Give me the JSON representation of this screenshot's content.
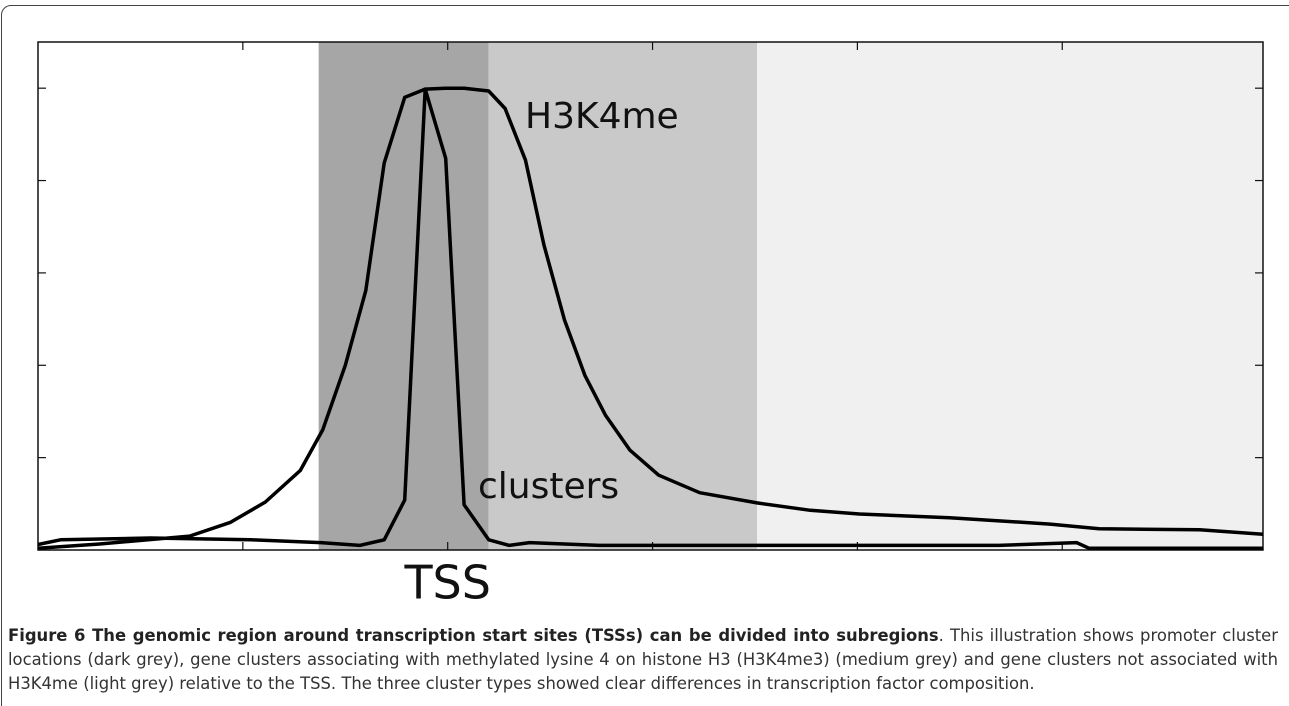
{
  "chart_data": {
    "type": "line",
    "xlim": [
      -2,
      3.98
    ],
    "ylim": [
      0,
      5.5
    ],
    "xticks": [
      -1,
      {
        "value": 0,
        "label": "TSS"
      },
      1,
      2,
      3
    ],
    "yticks": [
      1,
      2,
      3,
      4,
      5
    ],
    "regions": [
      {
        "start": -0.63,
        "end": 0.2,
        "color": "#a6a6a6"
      },
      {
        "start": 0.2,
        "end": 1.51,
        "color": "#c9c9c9"
      },
      {
        "start": 1.51,
        "end": 3.98,
        "color": "#f0f0f0"
      }
    ],
    "annotations": [
      "H3K4me",
      "clusters"
    ],
    "series": [
      {
        "color": "#000000",
        "x": [
          -2.0,
          -1.7,
          -1.26,
          -1.06,
          -0.89,
          -0.72,
          -0.61,
          -0.5,
          -0.4,
          -0.31,
          -0.21,
          -0.11,
          -0.01,
          0.08,
          0.2,
          0.28,
          0.38,
          0.47,
          0.57,
          0.67,
          0.77,
          0.89,
          1.03,
          1.23,
          1.51,
          1.77,
          2.01,
          2.45,
          2.94,
          3.18,
          3.67,
          3.98
        ],
        "values": [
          0.02,
          0.065,
          0.15,
          0.3,
          0.52,
          0.86,
          1.3,
          2.0,
          2.81,
          4.19,
          4.9,
          4.99,
          5.0,
          5.0,
          4.97,
          4.78,
          4.22,
          3.3,
          2.49,
          1.89,
          1.46,
          1.08,
          0.81,
          0.62,
          0.51,
          0.43,
          0.39,
          0.35,
          0.28,
          0.23,
          0.22,
          0.17
        ]
      },
      {
        "color": "#000000",
        "x": [
          -2.0,
          -1.89,
          -1.45,
          -0.96,
          -0.62,
          -0.43,
          -0.31,
          -0.21,
          -0.11,
          -0.01,
          0.08,
          0.2,
          0.3,
          0.4,
          0.74,
          1.23,
          1.72,
          2.2,
          2.69,
          3.07,
          3.13,
          3.98
        ],
        "values": [
          0.06,
          0.11,
          0.13,
          0.11,
          0.08,
          0.05,
          0.11,
          0.54,
          4.99,
          4.24,
          0.49,
          0.11,
          0.05,
          0.08,
          0.05,
          0.05,
          0.05,
          0.05,
          0.05,
          0.08,
          0.02,
          0.02
        ]
      }
    ]
  },
  "caption": {
    "title": "Figure 6 The genomic region around transcription start sites (TSSs) can be divided into subregions",
    "text": ". This illustration shows promoter cluster locations (dark grey), gene clusters associating with methylated lysine 4 on histone H3 (H3K4me3) (medium grey) and gene clusters not associated with H3K4me (light grey) relative to the TSS. The three cluster types showed clear differences in transcription factor composition."
  }
}
